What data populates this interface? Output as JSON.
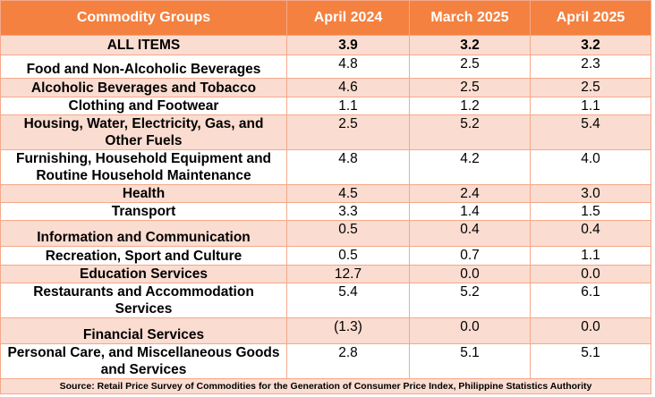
{
  "headers": [
    "Commodity Groups",
    "April 2024",
    "March 2025",
    "April 2025"
  ],
  "rows": [
    {
      "group": "ALL ITEMS",
      "v": [
        "3.9",
        "3.2",
        "3.2"
      ]
    },
    {
      "group": "Food and Non-Alcoholic Beverages",
      "v": [
        "4.8",
        "2.5",
        "2.3"
      ]
    },
    {
      "group": "Alcoholic Beverages and Tobacco",
      "v": [
        "4.6",
        "2.5",
        "2.5"
      ]
    },
    {
      "group": "Clothing and Footwear",
      "v": [
        "1.1",
        "1.2",
        "1.1"
      ]
    },
    {
      "group": "Housing, Water, Electricity, Gas, and Other Fuels",
      "v": [
        "2.5",
        "5.2",
        "5.4"
      ]
    },
    {
      "group": "Furnishing, Household Equipment and Routine Household Maintenance",
      "v": [
        "4.8",
        "4.2",
        "4.0"
      ]
    },
    {
      "group": "Health",
      "v": [
        "4.5",
        "2.4",
        "3.0"
      ]
    },
    {
      "group": "Transport",
      "v": [
        "3.3",
        "1.4",
        "1.5"
      ]
    },
    {
      "group": "Information and Communication",
      "v": [
        "0.5",
        "0.4",
        "0.4"
      ]
    },
    {
      "group": "Recreation, Sport and Culture",
      "v": [
        "0.5",
        "0.7",
        "1.1"
      ]
    },
    {
      "group": "Education Services",
      "v": [
        "12.7",
        "0.0",
        "0.0"
      ]
    },
    {
      "group": "Restaurants and Accommodation Services",
      "v": [
        "5.4",
        "5.2",
        "6.1"
      ]
    },
    {
      "group": "Financial Services",
      "v": [
        "(1.3)",
        "0.0",
        "0.0"
      ]
    },
    {
      "group": "Personal Care, and Miscellaneous Goods and Services",
      "v": [
        "2.8",
        "5.1",
        "5.1"
      ]
    }
  ],
  "source": "Source: Retail Price Survey of Commodities for the Generation of Consumer Price Index, Philippine Statistics Authority"
}
